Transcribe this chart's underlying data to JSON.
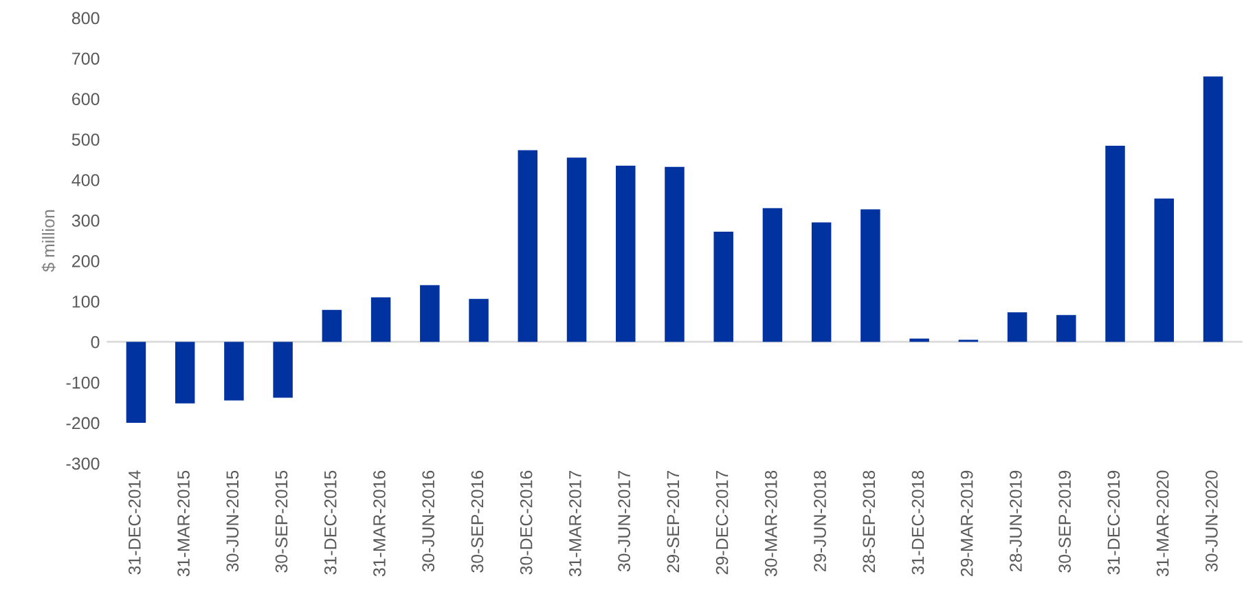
{
  "chart_data": {
    "type": "bar",
    "ylabel": "$ million",
    "categories": [
      "31-DEC-2014",
      "31-MAR-2015",
      "30-JUN-2015",
      "30-SEP-2015",
      "31-DEC-2015",
      "31-MAR-2016",
      "30-JUN-2016",
      "30-SEP-2016",
      "30-DEC-2016",
      "31-MAR-2017",
      "30-JUN-2017",
      "29-SEP-2017",
      "29-DEC-2017",
      "30-MAR-2018",
      "29-JUN-2018",
      "28-SEP-2018",
      "31-DEC-2018",
      "29-MAR-2019",
      "28-JUN-2019",
      "30-SEP-2019",
      "31-DEC-2019",
      "31-MAR-2020",
      "30-JUN-2020"
    ],
    "values": [
      -200,
      -152,
      -145,
      -138,
      79,
      110,
      140,
      106,
      473,
      455,
      435,
      432,
      272,
      330,
      295,
      327,
      8,
      5,
      73,
      66,
      484,
      354,
      655
    ],
    "color": "#0033a0",
    "ylim": [
      -300,
      800
    ],
    "yticks": [
      -300,
      -200,
      -100,
      0,
      100,
      200,
      300,
      400,
      500,
      600,
      700,
      800
    ],
    "grid": false,
    "ref_lines": [
      {
        "axis": "y",
        "value": 0,
        "color": "#d9d9d9"
      }
    ]
  }
}
